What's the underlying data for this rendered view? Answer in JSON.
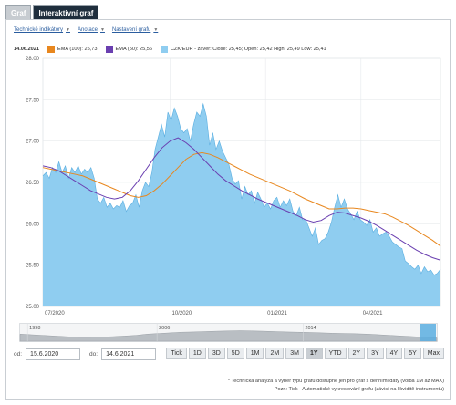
{
  "tabs": [
    {
      "label": "Graf",
      "active": false
    },
    {
      "label": "Interaktivní graf",
      "active": true
    }
  ],
  "toolbar": {
    "items": [
      {
        "label": "Technické indikátory"
      },
      {
        "label": "Anotace"
      },
      {
        "label": "Nastavení grafu"
      }
    ]
  },
  "legend": {
    "date": "14.06.2021",
    "items": [
      {
        "label": "EMA (100): 25,73",
        "color": "#e8871e"
      },
      {
        "label": "EMA (50): 25,56",
        "color": "#6a3fb0"
      },
      {
        "label": "CZK/EUR - závěr: Close: 25,45; Open: 25,42 High: 25,49 Low: 25,41",
        "color": "#8fcdf0"
      }
    ]
  },
  "chart_data": {
    "type": "area",
    "title": "",
    "ylim": [
      25.0,
      28.0
    ],
    "y_ticks": [
      "28.00",
      "27.50",
      "27.00",
      "26.50",
      "26.00",
      "25.50",
      "25.00"
    ],
    "x_tick_labels": [
      "07/2020",
      "10/2020",
      "01/2021",
      "04/2021"
    ],
    "colors": {
      "area": "#8fcdf0",
      "area_line": "#5aaee0",
      "ema100": "#e8871e",
      "ema50": "#6a3fb0"
    },
    "series": [
      {
        "name": "CZK/EUR - závěr",
        "values": [
          26.58,
          26.62,
          26.55,
          26.68,
          26.62,
          26.75,
          26.62,
          26.7,
          26.55,
          26.68,
          26.62,
          26.7,
          26.6,
          26.66,
          26.62,
          26.68,
          26.55,
          26.3,
          26.25,
          26.32,
          26.2,
          26.25,
          26.18,
          26.22,
          26.2,
          26.28,
          26.15,
          26.22,
          26.25,
          26.35,
          26.2,
          26.4,
          26.5,
          26.45,
          26.62,
          26.9,
          27.05,
          27.2,
          27.05,
          27.35,
          27.25,
          27.4,
          27.3,
          27.15,
          27.1,
          27.15,
          27.0,
          27.2,
          27.35,
          27.3,
          27.45,
          27.3,
          26.95,
          27.1,
          26.9,
          27.0,
          26.88,
          26.8,
          26.72,
          26.55,
          26.48,
          26.52,
          26.3,
          26.45,
          26.35,
          26.4,
          26.25,
          26.38,
          26.3,
          26.2,
          26.25,
          26.18,
          26.28,
          26.32,
          26.2,
          26.28,
          26.22,
          26.3,
          26.15,
          26.1,
          26.2,
          26.05,
          26.05,
          25.95,
          25.85,
          25.95,
          25.75,
          25.8,
          25.82,
          25.9,
          26.02,
          26.2,
          26.35,
          26.2,
          26.3,
          26.18,
          26.12,
          26.05,
          26.15,
          26.05,
          26.02,
          25.98,
          26.05,
          25.9,
          25.95,
          25.85,
          25.88,
          25.9,
          25.85,
          25.78,
          25.75,
          25.72,
          25.7,
          25.55,
          25.52,
          25.48,
          25.45,
          25.5,
          25.4,
          25.48,
          25.42,
          25.44,
          25.38,
          25.4,
          25.45
        ]
      },
      {
        "name": "EMA (100)",
        "values": [
          26.68,
          26.66,
          26.64,
          26.62,
          26.6,
          26.58,
          26.54,
          26.5,
          26.46,
          26.42,
          26.38,
          26.34,
          26.32,
          26.34,
          26.4,
          26.48,
          26.58,
          26.68,
          26.78,
          26.84,
          26.86,
          26.84,
          26.8,
          26.75,
          26.7,
          26.65,
          26.6,
          26.56,
          26.52,
          26.48,
          26.44,
          26.4,
          26.35,
          26.3,
          26.26,
          26.22,
          26.18,
          26.18,
          26.19,
          26.19,
          26.18,
          26.16,
          26.14,
          26.12,
          26.08,
          26.03,
          25.98,
          25.92,
          25.86,
          25.8,
          25.73
        ]
      },
      {
        "name": "EMA (50)",
        "values": [
          26.7,
          26.68,
          26.64,
          26.58,
          26.52,
          26.46,
          26.4,
          26.36,
          26.32,
          26.3,
          26.32,
          26.4,
          26.52,
          26.66,
          26.8,
          26.92,
          27.0,
          27.04,
          26.98,
          26.9,
          26.8,
          26.7,
          26.6,
          26.52,
          26.46,
          26.4,
          26.35,
          26.3,
          26.26,
          26.22,
          26.18,
          26.14,
          26.1,
          26.05,
          26.02,
          26.04,
          26.1,
          26.14,
          26.13,
          26.1,
          26.07,
          26.03,
          25.98,
          25.92,
          25.86,
          25.8,
          25.74,
          25.68,
          25.63,
          25.59,
          25.56
        ]
      }
    ]
  },
  "navigator": {
    "labels": [
      "1998",
      "2006",
      "2014"
    ],
    "values": [
      0.55,
      0.5,
      0.45,
      0.4,
      0.35,
      0.3,
      0.3,
      0.32,
      0.35,
      0.4,
      0.45,
      0.55,
      0.6,
      0.65,
      0.7,
      0.72,
      0.75,
      0.78,
      0.8,
      0.82,
      0.8,
      0.78,
      0.75,
      0.72,
      0.7,
      0.68,
      0.65,
      0.62,
      0.6,
      0.58,
      0.55,
      0.5,
      0.45,
      0.4,
      0.35,
      0.3,
      0.25
    ]
  },
  "range": {
    "from_label": "od:",
    "from_value": "15.6.2020",
    "to_label": "do:",
    "to_value": "14.6.2021",
    "buttons": [
      "Tick",
      "1D",
      "3D",
      "5D",
      "1M",
      "2M",
      "3M",
      "1Y",
      "YTD",
      "2Y",
      "3Y",
      "4Y",
      "5Y",
      "Max"
    ],
    "selected": "1Y"
  },
  "notes": {
    "line1": "* Technická analýza a výběr typu grafu dostupné jen pro graf s denními daty (volba 1M až MAX)",
    "line2": "Pozn: Tick - Automatické vykreslování grafu (závisí na likviditě instrumentu)"
  }
}
